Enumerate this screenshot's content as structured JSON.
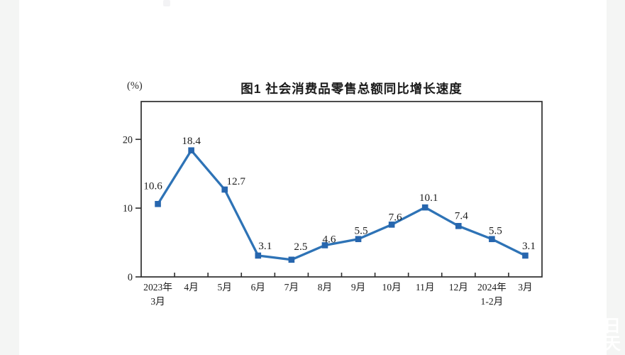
{
  "page": {
    "margin_color": "#f4f5f4",
    "content_background": "#ffffff"
  },
  "chart": {
    "title": "图1 社会消费品零售总额同比增长速度",
    "unit_label": "(%)"
  },
  "chart_data": {
    "type": "line",
    "title": "图1 社会消费品零售总额同比增长速度",
    "ylabel": "(%)",
    "xlabel": "",
    "categories": [
      "2023年\n3月",
      "4月",
      "5月",
      "6月",
      "7月",
      "8月",
      "9月",
      "10月",
      "11月",
      "12月",
      "2024年\n1-2月",
      "3月"
    ],
    "values": [
      10.6,
      18.4,
      12.7,
      3.1,
      2.5,
      4.6,
      5.5,
      7.6,
      10.1,
      7.4,
      5.5,
      3.1
    ],
    "data_labels": [
      "10.6",
      "18.4",
      "12.7",
      "3.1",
      "2.5",
      "4.6",
      "5.5",
      "7.6",
      "10.1",
      "7.4",
      "5.5",
      "3.1"
    ],
    "y_ticks": [
      0,
      10,
      20
    ],
    "ylim": [
      0,
      25.5
    ],
    "grid": false,
    "legend": "none",
    "marker": "square",
    "line_color": "#2e73b6",
    "marker_color": "#2766ae",
    "frame_color": "#2d2d2d",
    "text_color": "#1c1c1c"
  }
}
